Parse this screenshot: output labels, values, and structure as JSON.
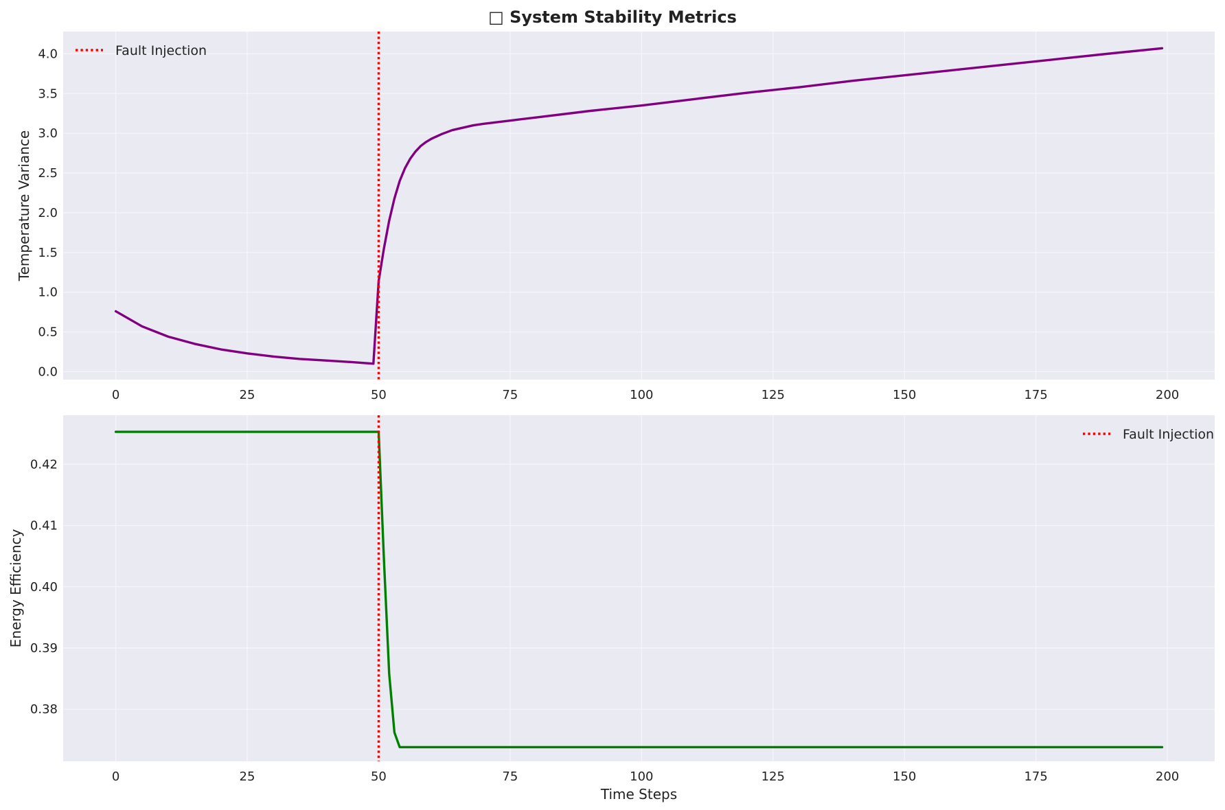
{
  "figure": {
    "title": "□ System Stability Metrics",
    "background": "#ffffff",
    "plot_background": "#eaeaf2"
  },
  "chart_data": [
    {
      "type": "line",
      "title": "",
      "xlabel": "",
      "ylabel": "Temperature Variance",
      "xlim": [
        -10,
        209
      ],
      "ylim": [
        -0.1,
        4.28
      ],
      "xticks": [
        0,
        25,
        50,
        75,
        100,
        125,
        150,
        175,
        200
      ],
      "yticks": [
        0.0,
        0.5,
        1.0,
        1.5,
        2.0,
        2.5,
        3.0,
        3.5,
        4.0
      ],
      "ytick_decimals": 1,
      "grid": true,
      "legend": {
        "placement": "top-left",
        "entries": [
          "Fault Injection"
        ]
      },
      "series": [
        {
          "color": "#800080",
          "x": [
            0,
            5,
            10,
            15,
            20,
            25,
            30,
            35,
            40,
            45,
            49,
            50,
            51,
            52,
            53,
            54,
            55,
            56,
            57,
            58,
            59,
            60,
            62,
            64,
            66,
            68,
            70,
            75,
            80,
            90,
            100,
            110,
            120,
            130,
            140,
            150,
            160,
            170,
            180,
            190,
            199
          ],
          "y": [
            0.76,
            0.57,
            0.44,
            0.35,
            0.28,
            0.23,
            0.19,
            0.16,
            0.14,
            0.12,
            0.1,
            1.14,
            1.55,
            1.9,
            2.18,
            2.4,
            2.56,
            2.68,
            2.77,
            2.84,
            2.89,
            2.93,
            2.99,
            3.04,
            3.07,
            3.1,
            3.12,
            3.16,
            3.2,
            3.28,
            3.35,
            3.43,
            3.51,
            3.58,
            3.66,
            3.73,
            3.8,
            3.87,
            3.94,
            4.01,
            4.07
          ]
        }
      ],
      "vlines": [
        {
          "x": 50,
          "color": "#ff0000",
          "style": "dotted",
          "label": "Fault Injection"
        }
      ]
    },
    {
      "type": "line",
      "title": "",
      "xlabel": "Time Steps",
      "ylabel": "Energy Efficiency",
      "xlim": [
        -10,
        209
      ],
      "ylim": [
        0.3715,
        0.428
      ],
      "xticks": [
        0,
        25,
        50,
        75,
        100,
        125,
        150,
        175,
        200
      ],
      "yticks": [
        0.38,
        0.39,
        0.4,
        0.41,
        0.42
      ],
      "ytick_decimals": 2,
      "grid": true,
      "legend": {
        "placement": "top-right",
        "entries": [
          "Fault Injection"
        ]
      },
      "series": [
        {
          "color": "#008000",
          "x": [
            0,
            50,
            51,
            52,
            53,
            54,
            199
          ],
          "y": [
            0.4253,
            0.4253,
            0.4045,
            0.3858,
            0.3762,
            0.3738,
            0.3738
          ]
        }
      ],
      "vlines": [
        {
          "x": 50,
          "color": "#ff0000",
          "style": "dotted",
          "label": "Fault Injection"
        }
      ]
    }
  ]
}
